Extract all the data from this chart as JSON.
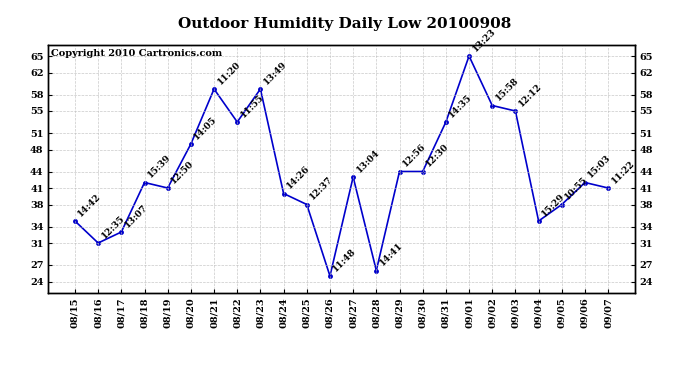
{
  "title": "Outdoor Humidity Daily Low 20100908",
  "copyright": "Copyright 2010 Cartronics.com",
  "x_labels": [
    "08/15",
    "08/16",
    "08/17",
    "08/18",
    "08/19",
    "08/20",
    "08/21",
    "08/22",
    "08/23",
    "08/24",
    "08/25",
    "08/26",
    "08/27",
    "08/28",
    "08/29",
    "08/30",
    "08/31",
    "09/01",
    "09/02",
    "09/03",
    "09/04",
    "09/05",
    "09/06",
    "09/07"
  ],
  "y_values": [
    35,
    31,
    33,
    42,
    41,
    49,
    59,
    53,
    59,
    40,
    38,
    25,
    43,
    26,
    44,
    44,
    53,
    65,
    56,
    55,
    35,
    38,
    42,
    41
  ],
  "time_labels": [
    "14:42",
    "12:35",
    "13:07",
    "15:39",
    "12:50",
    "14:05",
    "11:20",
    "11:55",
    "13:49",
    "14:26",
    "12:37",
    "11:48",
    "13:04",
    "14:41",
    "12:56",
    "12:30",
    "14:35",
    "13:23",
    "15:58",
    "12:12",
    "15:29",
    "10:55",
    "15:03",
    "11:22"
  ],
  "line_color": "#0000cc",
  "marker_color": "#0000cc",
  "background_color": "#ffffff",
  "grid_color": "#bbbbbb",
  "y_ticks": [
    24,
    27,
    31,
    34,
    38,
    41,
    44,
    48,
    51,
    55,
    58,
    62,
    65
  ],
  "ylim": [
    22,
    67
  ],
  "title_fontsize": 11,
  "label_fontsize": 6.5,
  "tick_fontsize": 7,
  "copyright_fontsize": 7
}
